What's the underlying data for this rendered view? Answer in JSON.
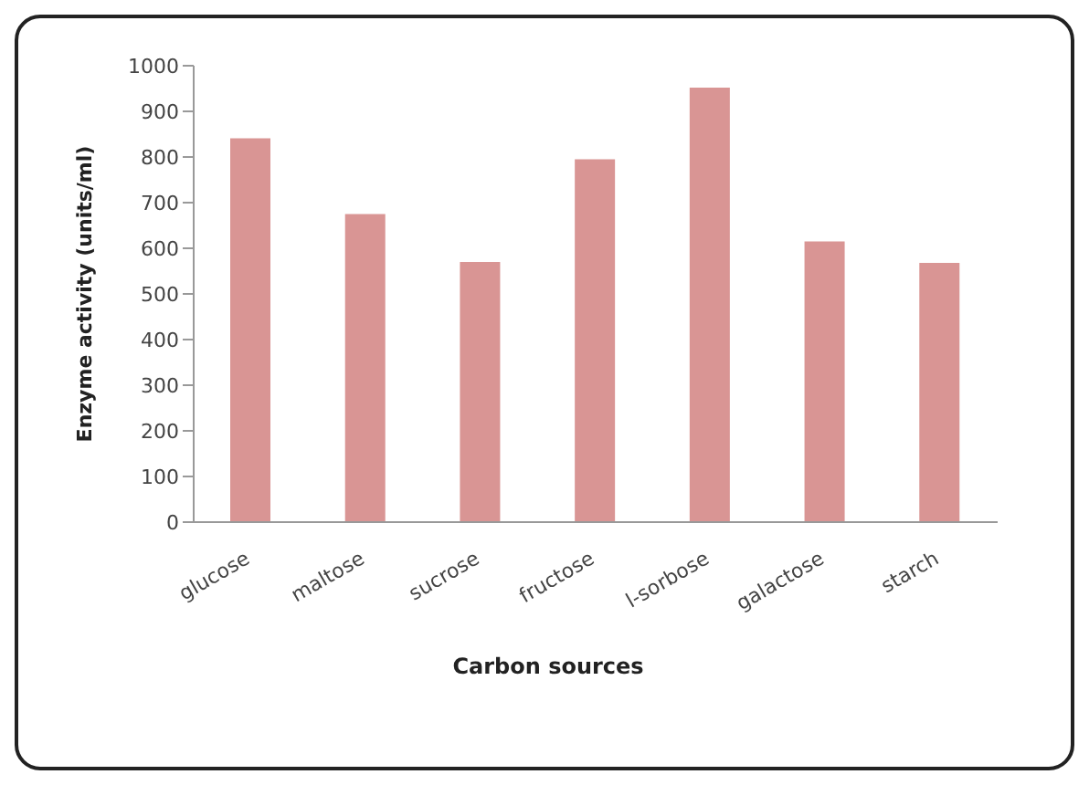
{
  "chart_data": {
    "type": "bar",
    "xlabel": "Carbon sources",
    "ylabel": "Enzyme  activity (units/ml)",
    "categories": [
      "glucose",
      "maltose",
      "sucrose",
      "fructose",
      "l-sorbose",
      "galactose",
      "starch"
    ],
    "values": [
      841,
      675,
      570,
      795,
      952,
      615,
      568
    ],
    "color": "#d99594",
    "ylim": [
      0,
      1000
    ],
    "yticks": [
      0,
      100,
      200,
      300,
      400,
      500,
      600,
      700,
      800,
      900,
      1000
    ],
    "grid": false,
    "legend": false
  }
}
